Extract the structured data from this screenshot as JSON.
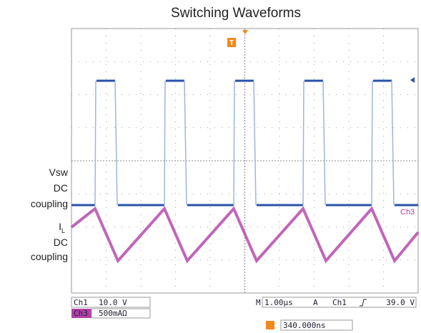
{
  "header": {
    "title": "Switching Waveforms"
  },
  "labels": {
    "vsw": [
      "Vsw",
      "DC",
      "coupling"
    ],
    "il": {
      "symbol": "I",
      "subscript": "L",
      "lines": [
        "DC",
        "coupling"
      ]
    }
  },
  "scope": {
    "trigger_marker": "T",
    "trace_label": "Ch3"
  },
  "readouts": {
    "ch1": {
      "label": "Ch1",
      "scale": "10.0 V"
    },
    "ch3": {
      "label": "Ch3",
      "scale": "500mAΩ"
    },
    "timebase": {
      "prefix": "M",
      "value": "1.00µs"
    },
    "trigger": {
      "mode": "A",
      "source": "Ch1",
      "level": "39.0 V"
    },
    "position": "340.000ns"
  }
}
